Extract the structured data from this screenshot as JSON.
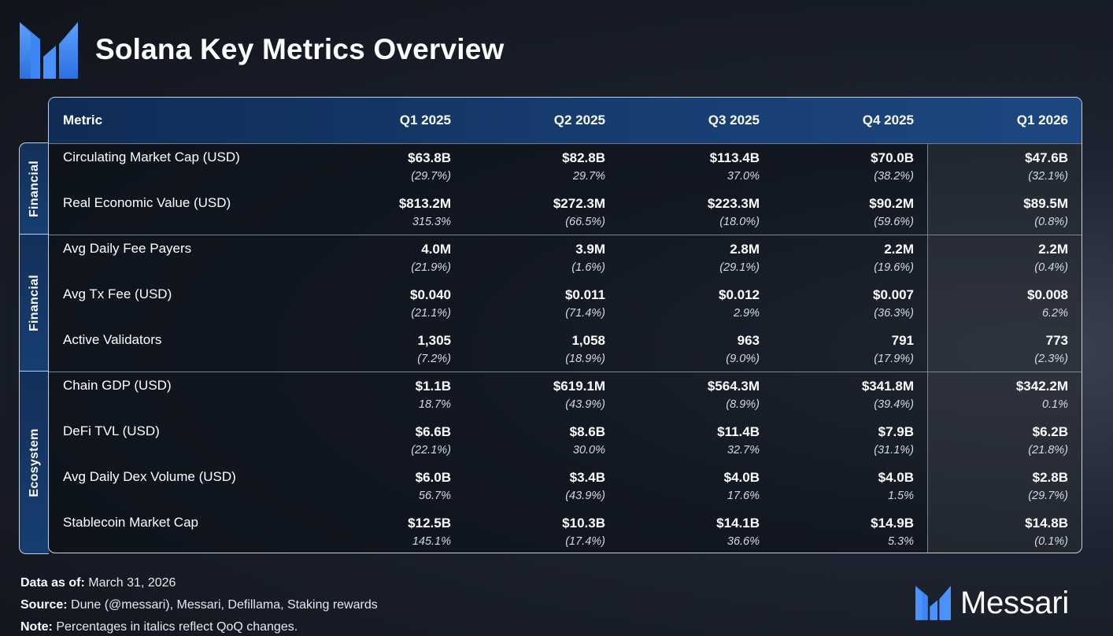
{
  "header": {
    "title": "Solana Key Metrics Overview"
  },
  "table": {
    "columns": [
      "Metric",
      "Q1 2025",
      "Q2 2025",
      "Q3 2025",
      "Q4 2025",
      "Q1 2026"
    ],
    "groups": [
      {
        "label": "Financial",
        "rows": [
          {
            "metric": "Circulating Market Cap (USD)",
            "cells": [
              {
                "value": "$63.8B",
                "change": "(29.7%)"
              },
              {
                "value": "$82.8B",
                "change": "29.7%"
              },
              {
                "value": "$113.4B",
                "change": "37.0%"
              },
              {
                "value": "$70.0B",
                "change": "(38.2%)"
              },
              {
                "value": "$47.6B",
                "change": "(32.1%)"
              }
            ]
          },
          {
            "metric": "Real Economic Value (USD)",
            "cells": [
              {
                "value": "$813.2M",
                "change": "315.3%"
              },
              {
                "value": "$272.3M",
                "change": "(66.5%)"
              },
              {
                "value": "$223.3M",
                "change": "(18.0%)"
              },
              {
                "value": "$90.2M",
                "change": "(59.6%)"
              },
              {
                "value": "$89.5M",
                "change": "(0.8%)"
              }
            ]
          }
        ]
      },
      {
        "label": "Financial",
        "rows": [
          {
            "metric": "Avg Daily Fee Payers",
            "cells": [
              {
                "value": "4.0M",
                "change": "(21.9%)"
              },
              {
                "value": "3.9M",
                "change": "(1.6%)"
              },
              {
                "value": "2.8M",
                "change": "(29.1%)"
              },
              {
                "value": "2.2M",
                "change": "(19.6%)"
              },
              {
                "value": "2.2M",
                "change": "(0.4%)"
              }
            ]
          },
          {
            "metric": "Avg Tx Fee (USD)",
            "cells": [
              {
                "value": "$0.040",
                "change": "(21.1%)"
              },
              {
                "value": "$0.011",
                "change": "(71.4%)"
              },
              {
                "value": "$0.012",
                "change": "2.9%"
              },
              {
                "value": "$0.007",
                "change": "(36.3%)"
              },
              {
                "value": "$0.008",
                "change": "6.2%"
              }
            ]
          },
          {
            "metric": "Active Validators",
            "cells": [
              {
                "value": "1,305",
                "change": "(7.2%)"
              },
              {
                "value": "1,058",
                "change": "(18.9%)"
              },
              {
                "value": "963",
                "change": "(9.0%)"
              },
              {
                "value": "791",
                "change": "(17.9%)"
              },
              {
                "value": "773",
                "change": "(2.3%)"
              }
            ]
          }
        ]
      },
      {
        "label": "Ecosystem",
        "rows": [
          {
            "metric": "Chain GDP (USD)",
            "cells": [
              {
                "value": "$1.1B",
                "change": "18.7%"
              },
              {
                "value": "$619.1M",
                "change": "(43.9%)"
              },
              {
                "value": "$564.3M",
                "change": "(8.9%)"
              },
              {
                "value": "$341.8M",
                "change": "(39.4%)"
              },
              {
                "value": "$342.2M",
                "change": "0.1%"
              }
            ]
          },
          {
            "metric": "DeFi TVL (USD)",
            "cells": [
              {
                "value": "$6.6B",
                "change": "(22.1%)"
              },
              {
                "value": "$8.6B",
                "change": "30.0%"
              },
              {
                "value": "$11.4B",
                "change": "32.7%"
              },
              {
                "value": "$7.9B",
                "change": "(31.1%)"
              },
              {
                "value": "$6.2B",
                "change": "(21.8%)"
              }
            ]
          },
          {
            "metric": "Avg Daily Dex Volume (USD)",
            "cells": [
              {
                "value": "$6.0B",
                "change": "56.7%"
              },
              {
                "value": "$3.4B",
                "change": "(43.9%)"
              },
              {
                "value": "$4.0B",
                "change": "17.6%"
              },
              {
                "value": "$4.0B",
                "change": "1.5%"
              },
              {
                "value": "$2.8B",
                "change": "(29.7%)"
              }
            ]
          },
          {
            "metric": "Stablecoin Market Cap",
            "cells": [
              {
                "value": "$12.5B",
                "change": "145.1%"
              },
              {
                "value": "$10.3B",
                "change": "(17.4%)"
              },
              {
                "value": "$14.1B",
                "change": "36.6%"
              },
              {
                "value": "$14.9B",
                "change": "5.3%"
              },
              {
                "value": "$14.8B",
                "change": "(0.1%)"
              }
            ]
          }
        ]
      }
    ]
  },
  "footer": {
    "data_as_of_label": "Data as of:",
    "data_as_of_value": "March 31, 2026",
    "source_label": "Source:",
    "source_value": "Dune (@messari), Messari, Defillama, Staking rewards",
    "note_label": "Note:",
    "note_value": "Percentages in italics reflect QoQ changes."
  },
  "brand": {
    "name": "Messari",
    "logo_icon": "messari-logo-icon",
    "accent_color": "#3d8bff"
  }
}
